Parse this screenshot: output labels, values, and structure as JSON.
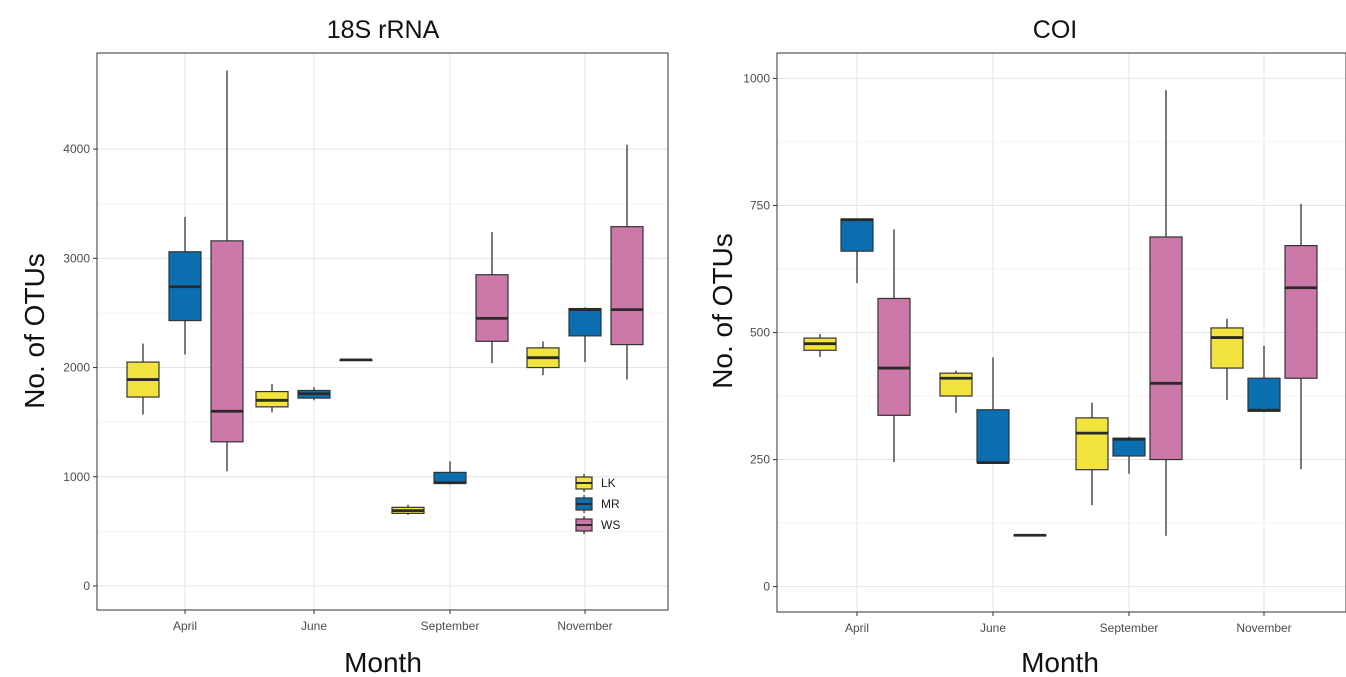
{
  "colors": {
    "LK": "#f2e33f",
    "MR": "#0b6eb0",
    "WS": "#cc78a8"
  },
  "chart_data": [
    {
      "type": "box",
      "title": "18S rRNA",
      "xlabel": "Month",
      "ylabel": "No. of OTUs",
      "categories": [
        "April",
        "June",
        "September",
        "November"
      ],
      "yticks": [
        0,
        1000,
        2000,
        3000,
        4000
      ],
      "ytick_labels": [
        "0",
        "1000",
        "2000",
        "3000",
        "4000"
      ],
      "ylim": [
        -220,
        4880
      ],
      "grid": true,
      "legend_position": "bottom-right",
      "series": [
        {
          "name": "LK",
          "boxes": [
            {
              "min": 1570,
              "q1": 1730,
              "median": 1890,
              "q3": 2050,
              "max": 2220
            },
            {
              "min": 1590,
              "q1": 1640,
              "median": 1700,
              "q3": 1780,
              "max": 1850
            },
            {
              "min": 650,
              "q1": 665,
              "median": 690,
              "q3": 720,
              "max": 745
            },
            {
              "min": 1930,
              "q1": 2000,
              "median": 2090,
              "q3": 2180,
              "max": 2240
            }
          ]
        },
        {
          "name": "MR",
          "boxes": [
            {
              "min": 2120,
              "q1": 2430,
              "median": 2740,
              "q3": 3060,
              "max": 3380
            },
            {
              "min": 1700,
              "q1": 1720,
              "median": 1760,
              "q3": 1790,
              "max": 1820
            },
            {
              "min": 930,
              "q1": 940,
              "median": 945,
              "q3": 1040,
              "max": 1140
            },
            {
              "min": 2050,
              "q1": 2290,
              "median": 2530,
              "q3": 2540,
              "max": 2550
            }
          ]
        },
        {
          "name": "WS",
          "boxes": [
            {
              "min": 1050,
              "q1": 1320,
              "median": 1600,
              "q3": 3160,
              "max": 4720
            },
            {
              "min": 2070,
              "q1": 2070,
              "median": 2070,
              "q3": 2070,
              "max": 2070
            },
            {
              "min": 2040,
              "q1": 2240,
              "median": 2450,
              "q3": 2850,
              "max": 3240
            },
            {
              "min": 1890,
              "q1": 2210,
              "median": 2530,
              "q3": 3290,
              "max": 4040
            }
          ]
        }
      ]
    },
    {
      "type": "box",
      "title": "COI",
      "xlabel": "Month",
      "ylabel": "No. of OTUs",
      "categories": [
        "April",
        "June",
        "September",
        "November"
      ],
      "yticks": [
        0,
        250,
        500,
        750,
        1000
      ],
      "ytick_labels": [
        "0",
        "250",
        "500",
        "750",
        "1000"
      ],
      "ylim": [
        -50,
        1050
      ],
      "grid": true,
      "series": [
        {
          "name": "LK",
          "boxes": [
            {
              "min": 452,
              "q1": 465,
              "median": 478,
              "q3": 489,
              "max": 497
            },
            {
              "min": 342,
              "q1": 375,
              "median": 410,
              "q3": 420,
              "max": 425
            },
            {
              "min": 160,
              "q1": 230,
              "median": 302,
              "q3": 332,
              "max": 362
            },
            {
              "min": 367,
              "q1": 430,
              "median": 490,
              "q3": 509,
              "max": 527
            }
          ]
        },
        {
          "name": "MR",
          "boxes": [
            {
              "min": 597,
              "q1": 660,
              "median": 722,
              "q3": 723,
              "max": 724
            },
            {
              "min": 244,
              "q1": 244,
              "median": 244,
              "q3": 348,
              "max": 451
            },
            {
              "min": 222,
              "q1": 257,
              "median": 290,
              "q3": 292,
              "max": 295
            },
            {
              "min": 343,
              "q1": 345,
              "median": 347,
              "q3": 410,
              "max": 474
            }
          ]
        },
        {
          "name": "WS",
          "boxes": [
            {
              "min": 245,
              "q1": 337,
              "median": 430,
              "q3": 567,
              "max": 703
            },
            {
              "min": 101,
              "q1": 101,
              "median": 101,
              "q3": 101,
              "max": 101
            },
            {
              "min": 100,
              "q1": 250,
              "median": 400,
              "q3": 688,
              "max": 977
            },
            {
              "min": 231,
              "q1": 410,
              "median": 588,
              "q3": 671,
              "max": 753
            }
          ]
        }
      ]
    }
  ]
}
